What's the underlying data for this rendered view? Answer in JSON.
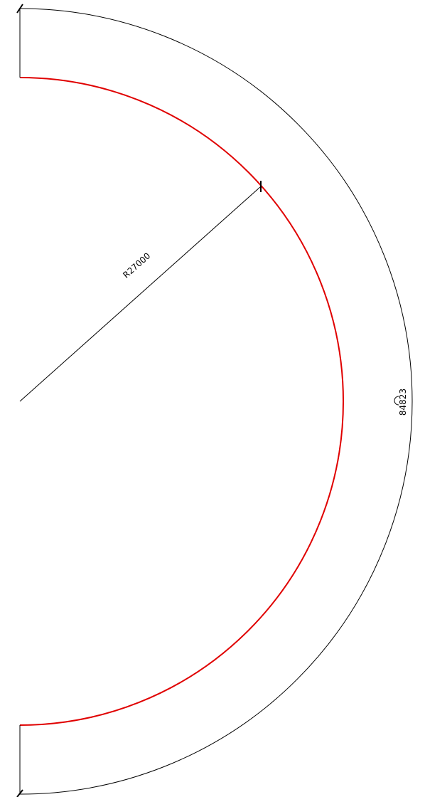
{
  "dimensions": {
    "radius": "R27000",
    "arc_length": "84823"
  }
}
